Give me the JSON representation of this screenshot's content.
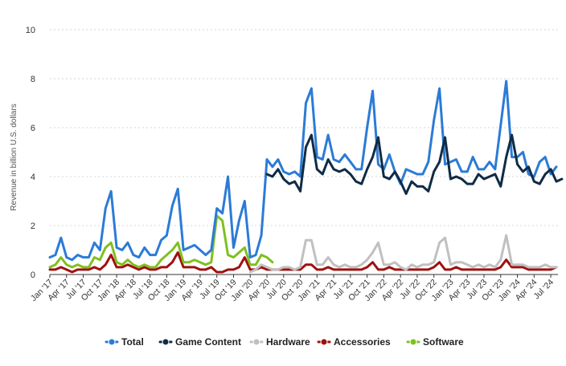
{
  "chart_data": {
    "type": "line",
    "ylabel": "Revenue in billion U.S. dollars",
    "xlabel": "",
    "ylim": [
      0,
      10
    ],
    "yticks": [
      0,
      2,
      4,
      6,
      8,
      10
    ],
    "grid": true,
    "legend_position": "bottom",
    "x_tick_labels": [
      "Jan '17",
      "Apr '17",
      "Jul '17",
      "Oct '17",
      "Jan '18",
      "Apr '18",
      "Jul '18",
      "Oct '18",
      "Jan '19",
      "Apr '19",
      "Jul '19",
      "Oct '19",
      "Jan '20",
      "Apr '20",
      "Jul '20",
      "Oct '20",
      "Jan '21",
      "Apr '21",
      "Jul '21",
      "Oct '21",
      "Jan '22",
      "Apr '22",
      "Jul '22",
      "Oct '22",
      "Jan '23",
      "Apr '23",
      "Jul '23",
      "Oct '23",
      "Jan '24",
      "Apr '24",
      "Jul '24"
    ],
    "x_start": "Jan 2017",
    "series": [
      {
        "name": "Total",
        "color": "#2b7bd6",
        "start_index": 0,
        "values": [
          0.7,
          0.8,
          1.5,
          0.7,
          0.6,
          0.8,
          0.7,
          0.7,
          1.3,
          1.0,
          2.7,
          3.4,
          1.1,
          1.0,
          1.3,
          0.8,
          0.7,
          1.1,
          0.8,
          0.8,
          1.4,
          1.6,
          2.8,
          3.5,
          1.0,
          1.1,
          1.2,
          1.0,
          0.8,
          1.0,
          2.7,
          2.5,
          4.0,
          1.1,
          2.2,
          3.0,
          0.7,
          0.8,
          1.6,
          4.7,
          4.4,
          4.7,
          4.2,
          4.1,
          4.2,
          4.0,
          7.0,
          7.6,
          4.8,
          4.7,
          5.7,
          4.7,
          4.6,
          4.9,
          4.6,
          4.3,
          4.3,
          6.0,
          7.5,
          4.5,
          4.3,
          4.9,
          4.2,
          3.7,
          4.3,
          4.2,
          4.1,
          4.1,
          4.6,
          6.3,
          7.6,
          4.5,
          4.6,
          4.7,
          4.2,
          4.2,
          4.8,
          4.3,
          4.3,
          4.6,
          4.3,
          6.1,
          7.9,
          4.8,
          4.8,
          5.0,
          4.1,
          4.0,
          4.6,
          4.8,
          4.1,
          4.4
        ]
      },
      {
        "name": "Game Content",
        "color": "#102b45",
        "start_index": 39,
        "values": [
          4.1,
          4.0,
          4.3,
          3.9,
          3.7,
          3.8,
          3.4,
          5.2,
          5.7,
          4.3,
          4.1,
          4.7,
          4.3,
          4.2,
          4.3,
          4.1,
          3.8,
          3.7,
          4.3,
          4.8,
          5.6,
          4.0,
          3.9,
          4.2,
          3.8,
          3.3,
          3.8,
          3.6,
          3.6,
          3.4,
          4.2,
          4.6,
          5.6,
          3.9,
          4.0,
          3.9,
          3.7,
          3.7,
          4.1,
          3.9,
          4.0,
          4.1,
          3.6,
          4.8,
          5.7,
          4.5,
          4.2,
          4.4,
          3.8,
          3.7,
          4.1,
          4.3,
          3.8,
          3.9
        ]
      },
      {
        "name": "Hardware",
        "color": "#c0c0c0",
        "start_index": 36,
        "values": [
          0.1,
          0.2,
          0.4,
          0.3,
          0.2,
          0.2,
          0.3,
          0.3,
          0.2,
          0.3,
          1.4,
          1.4,
          0.4,
          0.4,
          0.7,
          0.4,
          0.3,
          0.4,
          0.3,
          0.3,
          0.4,
          0.6,
          0.9,
          1.3,
          0.4,
          0.4,
          0.5,
          0.3,
          0.2,
          0.4,
          0.3,
          0.4,
          0.4,
          0.5,
          1.3,
          1.5,
          0.4,
          0.5,
          0.5,
          0.4,
          0.3,
          0.4,
          0.3,
          0.4,
          0.3,
          0.6,
          1.6,
          0.4,
          0.4,
          0.4,
          0.3,
          0.3,
          0.3,
          0.4,
          0.3,
          0.3
        ]
      },
      {
        "name": "Accessories",
        "color": "#a01010",
        "start_index": 0,
        "values": [
          0.2,
          0.2,
          0.3,
          0.2,
          0.1,
          0.2,
          0.2,
          0.2,
          0.3,
          0.2,
          0.4,
          0.8,
          0.3,
          0.3,
          0.4,
          0.3,
          0.2,
          0.3,
          0.2,
          0.2,
          0.3,
          0.3,
          0.5,
          0.9,
          0.3,
          0.3,
          0.3,
          0.2,
          0.2,
          0.3,
          0.1,
          0.1,
          0.2,
          0.2,
          0.3,
          0.7,
          0.2,
          0.2,
          0.3,
          0.2,
          0.2,
          0.2,
          0.2,
          0.2,
          0.2,
          0.2,
          0.4,
          0.4,
          0.2,
          0.2,
          0.3,
          0.2,
          0.2,
          0.2,
          0.2,
          0.2,
          0.2,
          0.3,
          0.5,
          0.2,
          0.2,
          0.3,
          0.2,
          0.2,
          0.2,
          0.2,
          0.2,
          0.2,
          0.2,
          0.3,
          0.5,
          0.2,
          0.2,
          0.3,
          0.2,
          0.2,
          0.2,
          0.2,
          0.2,
          0.2,
          0.2,
          0.3,
          0.6,
          0.3,
          0.3,
          0.3,
          0.2,
          0.2,
          0.2,
          0.2,
          0.2,
          0.3
        ]
      },
      {
        "name": "Software",
        "color": "#80c020",
        "start_index": 0,
        "values": [
          0.3,
          0.4,
          0.7,
          0.4,
          0.3,
          0.4,
          0.3,
          0.3,
          0.7,
          0.6,
          1.1,
          1.3,
          0.5,
          0.4,
          0.6,
          0.4,
          0.3,
          0.4,
          0.3,
          0.3,
          0.6,
          0.8,
          1.0,
          1.3,
          0.5,
          0.5,
          0.6,
          0.5,
          0.4,
          0.5,
          2.4,
          2.2,
          0.8,
          0.7,
          0.9,
          1.1,
          0.4,
          0.4,
          0.8,
          0.7,
          0.5
        ]
      }
    ]
  }
}
